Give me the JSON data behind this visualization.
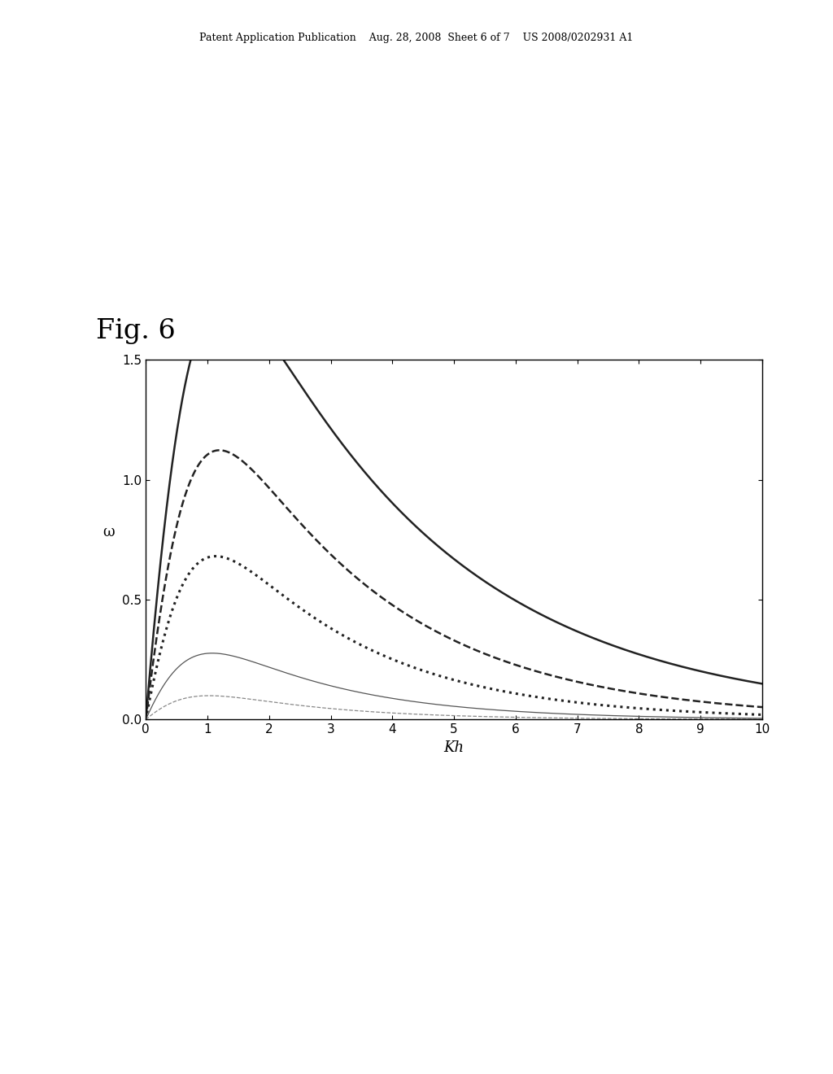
{
  "xlabel": "Kh",
  "ylabel": "ω",
  "xlim": [
    0,
    10
  ],
  "ylim": [
    0.0,
    1.5
  ],
  "xticks": [
    0,
    1,
    2,
    3,
    4,
    5,
    6,
    7,
    8,
    9,
    10
  ],
  "yticks": [
    0.0,
    0.5,
    1.0,
    1.5
  ],
  "fig_label": "Fig. 6",
  "fig_label_fontsize": 24,
  "header_text": "Patent Application Publication    Aug. 28, 2008  Sheet 6 of 7    US 2008/0202931 A1",
  "curve_params": [
    {
      "A": 3.0,
      "alpha": 0.3,
      "style": "-",
      "lw": 1.8,
      "color": "#222222"
    },
    {
      "A": 2.1,
      "alpha": 0.37,
      "style": "--",
      "lw": 1.8,
      "color": "#222222"
    },
    {
      "A": 1.35,
      "alpha": 0.42,
      "style": ":",
      "lw": 2.2,
      "color": "#222222"
    },
    {
      "A": 0.58,
      "alpha": 0.47,
      "style": "-",
      "lw": 0.9,
      "color": "#555555"
    },
    {
      "A": 0.22,
      "alpha": 0.52,
      "style": "--",
      "lw": 0.9,
      "color": "#888888"
    }
  ]
}
